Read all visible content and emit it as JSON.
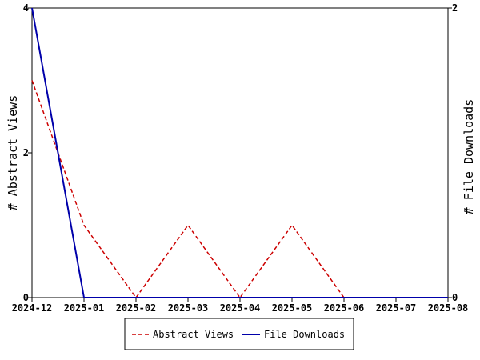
{
  "chart_data": {
    "type": "line",
    "x": [
      "2024-12",
      "2025-01",
      "2025-02",
      "2025-03",
      "2025-04",
      "2025-05",
      "2025-06",
      "2025-07",
      "2025-08"
    ],
    "series": [
      {
        "name": "Abstract Views",
        "axis": "left",
        "values": [
          3,
          1,
          0,
          1,
          0,
          1,
          0,
          0,
          0
        ],
        "color": "#cc0000",
        "style": "dashed"
      },
      {
        "name": "File Downloads",
        "axis": "right",
        "values": [
          2,
          0,
          0,
          0,
          0,
          0,
          0,
          0,
          0
        ],
        "color": "#0000aa",
        "style": "solid"
      }
    ],
    "ylabel": "# Abstract Views",
    "y2label": "# File Downloads",
    "ylim": [
      0,
      4
    ],
    "y2lim": [
      0,
      2
    ],
    "yticks": [
      "0",
      "2",
      "4"
    ],
    "y2ticks": [
      "0",
      "2"
    ],
    "grid": false,
    "legend_position": "bottom"
  }
}
